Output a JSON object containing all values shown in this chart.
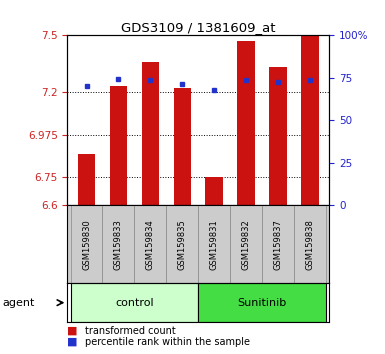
{
  "title": "GDS3109 / 1381609_at",
  "samples": [
    "GSM159830",
    "GSM159833",
    "GSM159834",
    "GSM159835",
    "GSM159831",
    "GSM159832",
    "GSM159837",
    "GSM159838"
  ],
  "red_values": [
    6.87,
    7.23,
    7.36,
    7.22,
    6.75,
    7.47,
    7.33,
    7.5
  ],
  "blue_values": [
    7.23,
    7.27,
    7.265,
    7.24,
    7.21,
    7.265,
    7.255,
    7.265
  ],
  "ylim_left": [
    6.6,
    7.5
  ],
  "yticks_left": [
    6.6,
    6.75,
    6.975,
    7.2,
    7.5
  ],
  "ytick_labels_left": [
    "6.6",
    "6.75",
    "6.975",
    "7.2",
    "7.5"
  ],
  "yticks_right": [
    0,
    25,
    50,
    75,
    100
  ],
  "ytick_labels_right": [
    "0",
    "25",
    "50",
    "75",
    "100%"
  ],
  "bar_color": "#cc1111",
  "dot_color": "#2233cc",
  "bar_width": 0.55,
  "control_color": "#ccffcc",
  "sunitinib_color": "#44dd44",
  "agent_label": "agent",
  "legend_items": [
    {
      "color": "#cc1111",
      "label": "transformed count"
    },
    {
      "color": "#2233cc",
      "label": "percentile rank within the sample"
    }
  ],
  "grid_color": "#000000",
  "background_color": "#ffffff",
  "left_color": "#cc2222",
  "right_color": "#2222cc",
  "sample_box_color": "#cccccc",
  "n_control": 4,
  "n_sunitinib": 4
}
